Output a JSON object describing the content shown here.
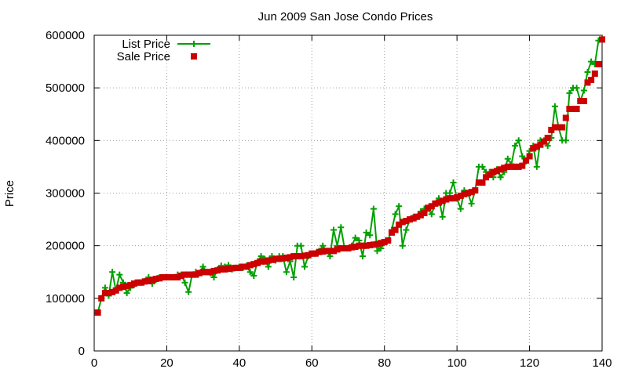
{
  "chart_data": {
    "type": "line",
    "title": "Jun 2009 San Jose Condo Prices",
    "xlabel": "",
    "ylabel": "Price",
    "xlim": [
      0,
      140
    ],
    "ylim": [
      0,
      600000
    ],
    "x_ticks": [
      0,
      20,
      40,
      60,
      80,
      100,
      120,
      140
    ],
    "y_ticks": [
      0,
      100000,
      200000,
      300000,
      400000,
      500000,
      600000
    ],
    "x_tick_labels": [
      "0",
      "20",
      "40",
      "60",
      "80",
      "100",
      "120",
      "140"
    ],
    "y_tick_labels": [
      "0",
      "100000",
      "200000",
      "300000",
      "400000",
      "500000",
      "600000"
    ],
    "grid": true,
    "legend_position": "top-left",
    "x": [
      1,
      2,
      3,
      4,
      5,
      6,
      7,
      8,
      9,
      10,
      11,
      12,
      13,
      14,
      15,
      16,
      17,
      18,
      19,
      20,
      21,
      22,
      23,
      24,
      25,
      26,
      27,
      28,
      29,
      30,
      31,
      32,
      33,
      34,
      35,
      36,
      37,
      38,
      39,
      40,
      41,
      42,
      43,
      44,
      45,
      46,
      47,
      48,
      49,
      50,
      51,
      52,
      53,
      54,
      55,
      56,
      57,
      58,
      59,
      60,
      61,
      62,
      63,
      64,
      65,
      66,
      67,
      68,
      69,
      70,
      71,
      72,
      73,
      74,
      75,
      76,
      77,
      78,
      79,
      80,
      81,
      82,
      83,
      84,
      85,
      86,
      87,
      88,
      89,
      90,
      91,
      92,
      93,
      94,
      95,
      96,
      97,
      98,
      99,
      100,
      101,
      102,
      103,
      104,
      105,
      106,
      107,
      108,
      109,
      110,
      111,
      112,
      113,
      114,
      115,
      116,
      117,
      118,
      119,
      120,
      121,
      122,
      123,
      124,
      125,
      126,
      127,
      128,
      129,
      130,
      131,
      132,
      133,
      134,
      135,
      136,
      137,
      138,
      139,
      140
    ],
    "series": [
      {
        "name": "List Price",
        "color": "#00a000",
        "marker": "plus",
        "values": [
          73000,
          100000,
          120000,
          105000,
          150000,
          115000,
          145000,
          130000,
          110000,
          120000,
          125000,
          130000,
          130000,
          133000,
          140000,
          128000,
          135000,
          140000,
          140000,
          140000,
          140000,
          140000,
          145000,
          145000,
          130000,
          112000,
          145000,
          150000,
          148000,
          160000,
          150000,
          148000,
          140000,
          155000,
          162000,
          160000,
          163000,
          155000,
          158000,
          160000,
          158000,
          162000,
          150000,
          143000,
          170000,
          180000,
          175000,
          160000,
          180000,
          172000,
          180000,
          180000,
          150000,
          170000,
          140000,
          200000,
          200000,
          160000,
          180000,
          185000,
          185000,
          190000,
          200000,
          190000,
          180000,
          230000,
          200000,
          235000,
          195000,
          195000,
          200000,
          215000,
          210000,
          180000,
          225000,
          220000,
          270000,
          190000,
          195000,
          205000,
          210000,
          230000,
          260000,
          275000,
          200000,
          230000,
          250000,
          255000,
          255000,
          265000,
          270000,
          270000,
          260000,
          280000,
          290000,
          255000,
          300000,
          300000,
          320000,
          290000,
          270000,
          305000,
          300000,
          280000,
          305000,
          350000,
          350000,
          340000,
          340000,
          330000,
          345000,
          330000,
          340000,
          365000,
          355000,
          390000,
          400000,
          370000,
          360000,
          380000,
          390000,
          350000,
          400000,
          400000,
          390000,
          405000,
          465000,
          425000,
          400000,
          400000,
          490000,
          500000,
          500000,
          475000,
          495000,
          530000,
          550000,
          545000,
          590000,
          595000
        ]
      },
      {
        "name": "Sale Price",
        "color": "#cc0000",
        "marker": "square",
        "values": [
          73000,
          100000,
          110000,
          110000,
          112000,
          115000,
          120000,
          122000,
          123000,
          125000,
          128000,
          130000,
          130000,
          132000,
          133000,
          135000,
          137000,
          138000,
          140000,
          140000,
          140000,
          140000,
          140000,
          143000,
          145000,
          145000,
          145000,
          145000,
          148000,
          150000,
          150000,
          150000,
          152000,
          153000,
          155000,
          155000,
          156000,
          157000,
          158000,
          158000,
          160000,
          160000,
          163000,
          165000,
          167000,
          170000,
          170000,
          172000,
          173000,
          175000,
          175000,
          176000,
          177000,
          178000,
          180000,
          180000,
          180000,
          181000,
          182000,
          185000,
          185000,
          188000,
          189000,
          190000,
          190000,
          190000,
          193000,
          195000,
          195000,
          195000,
          197000,
          198000,
          200000,
          200000,
          200000,
          201000,
          202000,
          203000,
          205000,
          207000,
          210000,
          225000,
          230000,
          240000,
          245000,
          247000,
          250000,
          252000,
          255000,
          258000,
          262000,
          272000,
          275000,
          280000,
          282000,
          285000,
          288000,
          290000,
          290000,
          292000,
          295000,
          298000,
          300000,
          302000,
          305000,
          320000,
          320000,
          330000,
          335000,
          340000,
          342000,
          345000,
          348000,
          350000,
          350000,
          350000,
          350000,
          352000,
          362000,
          370000,
          385000,
          388000,
          392000,
          398000,
          405000,
          420000,
          425000,
          425000,
          425000,
          443000,
          460000,
          460000,
          460000,
          475000,
          475000,
          510000,
          515000,
          527000,
          545000,
          592000
        ]
      }
    ]
  }
}
